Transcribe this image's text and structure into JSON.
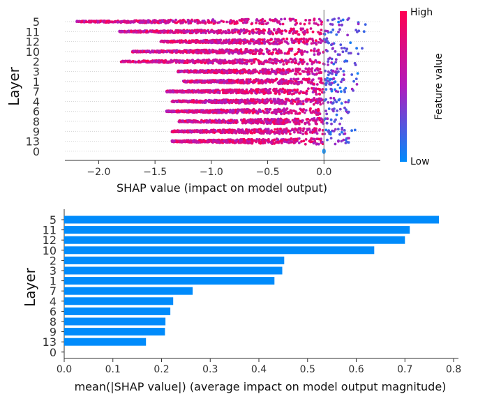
{
  "chart_data": [
    {
      "type": "beeswarm",
      "title": "",
      "xlabel": "SHAP value (impact on model output)",
      "ylabel": "Layer",
      "xlim": [
        -2.3,
        0.5
      ],
      "xticks": [
        -2.0,
        -1.5,
        -1.0,
        -0.5,
        0.0
      ],
      "xtick_labels": [
        "−2.0",
        "−1.5",
        "−1.0",
        "−0.5",
        "0.0"
      ],
      "categories": [
        "5",
        "11",
        "12",
        "10",
        "2",
        "3",
        "1",
        "7",
        "4",
        "6",
        "8",
        "9",
        "13",
        "0"
      ],
      "min_shap": [
        -2.2,
        -1.82,
        -1.45,
        -1.7,
        -1.8,
        -1.3,
        -1.25,
        -1.4,
        -1.35,
        -1.4,
        -1.3,
        -1.35,
        -1.35,
        -0.01
      ],
      "max_shap": [
        0.38,
        0.38,
        0.26,
        0.34,
        0.34,
        0.31,
        0.31,
        0.3,
        0.27,
        0.25,
        0.26,
        0.28,
        0.3,
        0.0
      ],
      "colorbar": {
        "high_label": "High",
        "low_label": "Low",
        "title": "Feature value",
        "high_color": "#ff0051",
        "low_color": "#008bfb"
      }
    },
    {
      "type": "bar",
      "orientation": "horizontal",
      "xlabel": "mean(|SHAP value|) (average impact on model output magnitude)",
      "ylabel": "Layer",
      "xlim": [
        0,
        0.81
      ],
      "xticks": [
        0.0,
        0.1,
        0.2,
        0.3,
        0.4,
        0.5,
        0.6,
        0.7,
        0.8
      ],
      "xtick_labels": [
        "0.0",
        "0.1",
        "0.2",
        "0.3",
        "0.4",
        "0.5",
        "0.6",
        "0.7",
        "0.8"
      ],
      "categories": [
        "5",
        "11",
        "12",
        "10",
        "2",
        "3",
        "1",
        "7",
        "4",
        "6",
        "8",
        "9",
        "13",
        "0"
      ],
      "values": [
        0.77,
        0.71,
        0.7,
        0.637,
        0.452,
        0.448,
        0.432,
        0.264,
        0.224,
        0.218,
        0.208,
        0.207,
        0.168,
        0.0
      ],
      "bar_color": "#008bfb"
    }
  ]
}
